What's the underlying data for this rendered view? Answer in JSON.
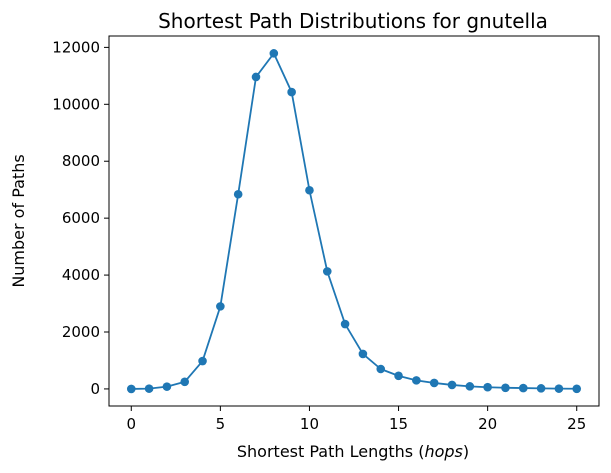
{
  "chart_data": {
    "type": "line",
    "title": "Shortest Path Distributions for gnutella",
    "xlabel_main": "Shortest Path Lengths (",
    "xlabel_unit": "hops",
    "xlabel_close": ")",
    "ylabel": "Number of Paths",
    "xlim": [
      -1.25,
      26.25
    ],
    "ylim": [
      -600,
      12400
    ],
    "xticks": [
      0,
      5,
      10,
      15,
      20,
      25
    ],
    "yticks": [
      0,
      2000,
      4000,
      6000,
      8000,
      10000,
      12000
    ],
    "grid": false,
    "legend": "none",
    "color": "#1f77b4",
    "series": [
      {
        "x": [
          0,
          1,
          2,
          3,
          4,
          5,
          6,
          7,
          8,
          9,
          10,
          11,
          12,
          13,
          14,
          15,
          16,
          17,
          18,
          19,
          20,
          21,
          22,
          23,
          24,
          25
        ],
        "values": [
          0,
          10,
          80,
          250,
          980,
          2900,
          6840,
          10960,
          11790,
          10430,
          6980,
          4130,
          2280,
          1230,
          700,
          460,
          300,
          210,
          140,
          90,
          60,
          40,
          30,
          20,
          10,
          5
        ]
      }
    ]
  }
}
